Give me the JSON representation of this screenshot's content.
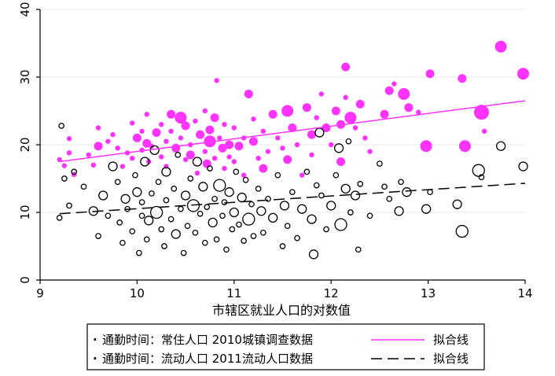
{
  "chart_data": {
    "type": "scatter",
    "title": "",
    "xlabel": "市辖区就业人口的对数值",
    "ylabel": "",
    "xlim": [
      9,
      14
    ],
    "ylim": [
      0,
      40
    ],
    "x_ticks": [
      "9",
      "10",
      "11",
      "12",
      "13",
      "14"
    ],
    "y_ticks": [
      "0",
      "10",
      "20",
      "30",
      "40"
    ],
    "grid": "horizontal",
    "legend_position": "bottom",
    "colors": {
      "resident": "#ff33ff",
      "migrant": "#000000",
      "fit_resident": "#ff33ff",
      "fit_migrant": "#000000"
    },
    "legend": [
      {
        "marker": "·",
        "label": "通勤时间：常住人口  2010城镇调查数据",
        "line_label": "拟合线",
        "line_style": "solid",
        "color": "#ff33ff"
      },
      {
        "marker": "·",
        "label": "通勤时间：流动人口  2011流动人口数据",
        "line_label": "拟合线",
        "line_style": "dashed",
        "color": "#000000"
      }
    ],
    "fit_lines": [
      {
        "series": "resident",
        "x": [
          9.2,
          14.0
        ],
        "y": [
          17.5,
          26.5
        ],
        "style": "solid"
      },
      {
        "series": "migrant",
        "x": [
          9.2,
          14.0
        ],
        "y": [
          9.8,
          14.3
        ],
        "style": "dashed"
      }
    ],
    "series": [
      {
        "name": "resident",
        "style": "filled",
        "points": [
          [
            9.2,
            17.8,
            1
          ],
          [
            9.25,
            16.9,
            1
          ],
          [
            9.3,
            20.9,
            1
          ],
          [
            9.3,
            18.8,
            1
          ],
          [
            9.35,
            15.6,
            1
          ],
          [
            9.5,
            18.5,
            1
          ],
          [
            9.55,
            17.0,
            1
          ],
          [
            9.6,
            19.8,
            2
          ],
          [
            9.6,
            22.5,
            1
          ],
          [
            9.7,
            20.5,
            1
          ],
          [
            9.75,
            21.5,
            1
          ],
          [
            9.8,
            19.5,
            1
          ],
          [
            9.85,
            16.8,
            1
          ],
          [
            9.9,
            18.8,
            1
          ],
          [
            9.95,
            23.2,
            1
          ],
          [
            9.95,
            18.0,
            1
          ],
          [
            10.0,
            21.0,
            2
          ],
          [
            10.05,
            19.2,
            1
          ],
          [
            10.05,
            22.0,
            1
          ],
          [
            10.1,
            24.5,
            1
          ],
          [
            10.1,
            20.2,
            2
          ],
          [
            10.12,
            17.5,
            1
          ],
          [
            10.15,
            19.8,
            1
          ],
          [
            10.2,
            21.8,
            2
          ],
          [
            10.25,
            23.0,
            1
          ],
          [
            10.25,
            18.2,
            1
          ],
          [
            10.3,
            20.5,
            1
          ],
          [
            10.3,
            16.8,
            1
          ],
          [
            10.35,
            24.5,
            2
          ],
          [
            10.35,
            22.0,
            1
          ],
          [
            10.4,
            19.5,
            2
          ],
          [
            10.45,
            24.0,
            3
          ],
          [
            10.45,
            21.0,
            1
          ],
          [
            10.5,
            17.8,
            1
          ],
          [
            10.5,
            22.8,
            2
          ],
          [
            10.55,
            20.0,
            1
          ],
          [
            10.55,
            18.5,
            2
          ],
          [
            10.6,
            23.5,
            1
          ],
          [
            10.62,
            15.8,
            1
          ],
          [
            10.65,
            21.5,
            2
          ],
          [
            10.7,
            19.0,
            1
          ],
          [
            10.7,
            25.0,
            1
          ],
          [
            10.72,
            17.2,
            2
          ],
          [
            10.75,
            22.2,
            2
          ],
          [
            10.75,
            20.5,
            3
          ],
          [
            10.8,
            18.0,
            1
          ],
          [
            10.8,
            24.0,
            2
          ],
          [
            10.82,
            29.5,
            1
          ],
          [
            10.85,
            21.0,
            1
          ],
          [
            10.88,
            19.5,
            2
          ],
          [
            10.9,
            16.5,
            1
          ],
          [
            10.9,
            23.0,
            1
          ],
          [
            10.95,
            20.0,
            2
          ],
          [
            10.95,
            18.2,
            1
          ],
          [
            11.0,
            22.5,
            1
          ],
          [
            11.0,
            17.5,
            1
          ],
          [
            11.05,
            19.8,
            2
          ],
          [
            11.1,
            21.0,
            1
          ],
          [
            11.1,
            15.5,
            1
          ],
          [
            11.15,
            27.5,
            2
          ],
          [
            11.2,
            20.5,
            2
          ],
          [
            11.2,
            23.8,
            1
          ],
          [
            11.25,
            18.0,
            1
          ],
          [
            11.3,
            16.5,
            2
          ],
          [
            11.3,
            22.0,
            1
          ],
          [
            11.35,
            19.0,
            1
          ],
          [
            11.4,
            24.5,
            2
          ],
          [
            11.45,
            21.0,
            1
          ],
          [
            11.5,
            19.5,
            1
          ],
          [
            11.55,
            25.0,
            3
          ],
          [
            11.55,
            17.8,
            2
          ],
          [
            11.6,
            22.5,
            2
          ],
          [
            11.65,
            20.0,
            1
          ],
          [
            11.7,
            15.5,
            1
          ],
          [
            11.75,
            25.5,
            2
          ],
          [
            11.8,
            21.5,
            2
          ],
          [
            11.8,
            18.5,
            1
          ],
          [
            11.85,
            24.0,
            1
          ],
          [
            11.9,
            27.5,
            1
          ],
          [
            11.95,
            22.5,
            2
          ],
          [
            12.0,
            20.0,
            1
          ],
          [
            12.05,
            25.0,
            2
          ],
          [
            12.1,
            23.0,
            2
          ],
          [
            12.1,
            17.5,
            2
          ],
          [
            12.15,
            27.0,
            1
          ],
          [
            12.15,
            31.5,
            2
          ],
          [
            12.2,
            24.0,
            3
          ],
          [
            12.25,
            22.5,
            1
          ],
          [
            12.3,
            26.0,
            2
          ],
          [
            12.35,
            21.0,
            1
          ],
          [
            12.4,
            19.0,
            1
          ],
          [
            12.55,
            24.5,
            2
          ],
          [
            12.6,
            28.0,
            2
          ],
          [
            12.65,
            29.0,
            1
          ],
          [
            12.75,
            27.5,
            3
          ],
          [
            12.8,
            25.5,
            2
          ],
          [
            12.9,
            24.8,
            1
          ],
          [
            12.98,
            19.8,
            3
          ],
          [
            13.02,
            30.5,
            2
          ],
          [
            13.35,
            29.8,
            2
          ],
          [
            13.38,
            19.8,
            3
          ],
          [
            13.55,
            24.8,
            4
          ],
          [
            13.58,
            22.0,
            1
          ],
          [
            13.75,
            34.5,
            3
          ],
          [
            13.98,
            30.5,
            3
          ]
        ]
      },
      {
        "name": "migrant",
        "style": "hollow",
        "points": [
          [
            9.2,
            9.2,
            1
          ],
          [
            9.22,
            22.8,
            1
          ],
          [
            9.25,
            15.0,
            1
          ],
          [
            9.3,
            11.0,
            1
          ],
          [
            9.35,
            16.0,
            1
          ],
          [
            9.45,
            13.8,
            1
          ],
          [
            9.55,
            10.2,
            2
          ],
          [
            9.6,
            6.5,
            1
          ],
          [
            9.65,
            12.5,
            2
          ],
          [
            9.7,
            9.5,
            1
          ],
          [
            9.75,
            16.8,
            2
          ],
          [
            9.8,
            14.5,
            1
          ],
          [
            9.82,
            8.5,
            1
          ],
          [
            9.85,
            5.5,
            1
          ],
          [
            9.88,
            12.0,
            2
          ],
          [
            9.9,
            10.5,
            1
          ],
          [
            9.95,
            7.2,
            1
          ],
          [
            9.98,
            15.5,
            1
          ],
          [
            10.0,
            13.0,
            2
          ],
          [
            10.02,
            4.0,
            1
          ],
          [
            10.05,
            9.5,
            1
          ],
          [
            10.05,
            11.5,
            1
          ],
          [
            10.08,
            17.5,
            2
          ],
          [
            10.1,
            6.0,
            1
          ],
          [
            10.12,
            8.8,
            2
          ],
          [
            10.15,
            12.8,
            1
          ],
          [
            10.18,
            19.2,
            2
          ],
          [
            10.2,
            10.0,
            3
          ],
          [
            10.22,
            14.5,
            1
          ],
          [
            10.25,
            7.5,
            1
          ],
          [
            10.28,
            5.0,
            1
          ],
          [
            10.3,
            11.8,
            1
          ],
          [
            10.3,
            16.0,
            2
          ],
          [
            10.35,
            9.0,
            1
          ],
          [
            10.38,
            13.5,
            1
          ],
          [
            10.4,
            6.8,
            2
          ],
          [
            10.42,
            18.5,
            1
          ],
          [
            10.45,
            10.5,
            1
          ],
          [
            10.48,
            4.0,
            1
          ],
          [
            10.5,
            12.5,
            2
          ],
          [
            10.52,
            8.0,
            1
          ],
          [
            10.55,
            15.0,
            1
          ],
          [
            10.58,
            11.0,
            3
          ],
          [
            10.6,
            7.0,
            1
          ],
          [
            10.62,
            17.5,
            2
          ],
          [
            10.65,
            9.8,
            1
          ],
          [
            10.68,
            13.8,
            2
          ],
          [
            10.7,
            5.5,
            1
          ],
          [
            10.72,
            10.8,
            1
          ],
          [
            10.75,
            16.5,
            1
          ],
          [
            10.78,
            8.5,
            2
          ],
          [
            10.8,
            12.0,
            1
          ],
          [
            10.82,
            6.0,
            1
          ],
          [
            10.85,
            14.0,
            3
          ],
          [
            10.88,
            9.5,
            1
          ],
          [
            10.9,
            11.5,
            1
          ],
          [
            10.92,
            4.5,
            1
          ],
          [
            10.95,
            13.0,
            2
          ],
          [
            10.98,
            7.5,
            1
          ],
          [
            11.0,
            10.0,
            2
          ],
          [
            11.02,
            16.0,
            1
          ],
          [
            11.05,
            8.2,
            1
          ],
          [
            11.08,
            12.2,
            2
          ],
          [
            11.1,
            5.8,
            1
          ],
          [
            11.12,
            14.8,
            1
          ],
          [
            11.15,
            9.0,
            3
          ],
          [
            11.18,
            11.2,
            1
          ],
          [
            11.2,
            6.5,
            1
          ],
          [
            11.25,
            13.5,
            1
          ],
          [
            11.28,
            10.2,
            2
          ],
          [
            11.3,
            7.0,
            1
          ],
          [
            11.35,
            12.0,
            1
          ],
          [
            11.4,
            9.2,
            2
          ],
          [
            11.45,
            15.5,
            1
          ],
          [
            11.5,
            5.0,
            1
          ],
          [
            11.52,
            11.0,
            2
          ],
          [
            11.55,
            8.0,
            1
          ],
          [
            11.6,
            13.0,
            1
          ],
          [
            11.65,
            6.2,
            1
          ],
          [
            11.7,
            10.5,
            2
          ],
          [
            11.75,
            16.0,
            1
          ],
          [
            11.8,
            9.0,
            2
          ],
          [
            11.82,
            3.8,
            2
          ],
          [
            11.85,
            14.0,
            1
          ],
          [
            11.88,
            21.8,
            2
          ],
          [
            11.9,
            12.5,
            1
          ],
          [
            11.95,
            7.5,
            1
          ],
          [
            12.0,
            11.0,
            2
          ],
          [
            12.05,
            15.5,
            1
          ],
          [
            12.08,
            19.5,
            2
          ],
          [
            12.1,
            8.2,
            3
          ],
          [
            12.15,
            13.5,
            2
          ],
          [
            12.18,
            20.5,
            1
          ],
          [
            12.2,
            10.0,
            1
          ],
          [
            12.25,
            12.5,
            2
          ],
          [
            12.28,
            4.5,
            1
          ],
          [
            12.3,
            14.2,
            1
          ],
          [
            12.4,
            9.5,
            1
          ],
          [
            12.5,
            17.2,
            1
          ],
          [
            12.55,
            13.8,
            1
          ],
          [
            12.6,
            12.0,
            1
          ],
          [
            12.7,
            10.2,
            2
          ],
          [
            12.72,
            14.5,
            1
          ],
          [
            12.78,
            13.0,
            2
          ],
          [
            12.98,
            10.5,
            2
          ],
          [
            13.02,
            13.0,
            1
          ],
          [
            13.3,
            11.2,
            2
          ],
          [
            13.35,
            7.2,
            3
          ],
          [
            13.52,
            16.2,
            3
          ],
          [
            13.55,
            15.2,
            1
          ],
          [
            13.75,
            19.8,
            2
          ],
          [
            13.98,
            16.8,
            2
          ]
        ]
      }
    ]
  }
}
